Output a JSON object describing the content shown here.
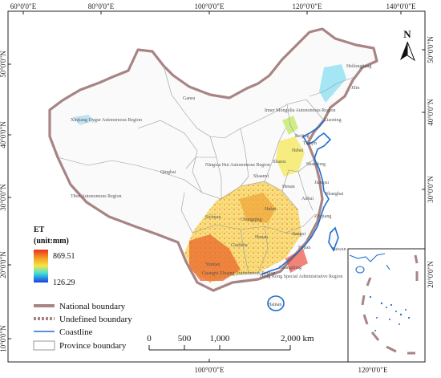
{
  "map": {
    "top_ticks": [
      "60°0'0\"E",
      "80°0'0\"E",
      "100°0'0\"E",
      "120°0'0\"E",
      "140°0'0\"E"
    ],
    "bottom_ticks": [
      "100°0'0\"E",
      "120°0'0\"E"
    ],
    "left_ticks": [
      "50°0'0\"N",
      "40°0'0\"N",
      "30°0'0\"N",
      "20°0'0\"N",
      "10°0'0\"N"
    ],
    "right_ticks": [
      "50°0'0\"N",
      "40°0'0\"N",
      "30°0'0\"N",
      "20°0'0\"N"
    ],
    "north_label": "N",
    "colors": {
      "national_boundary": "#a88484",
      "coastline": "#1f6fd0",
      "province_boundary": "#9a9a9a",
      "et_high": "#e8321e",
      "et_mid": "#f4e64a",
      "et_low": "#1b3ee6"
    },
    "provinces": [
      {
        "key": "xinjiang",
        "label": "Xinjiang Uygur Autonomous Region"
      },
      {
        "key": "tibet",
        "label": "Tibet Autonomous Region"
      },
      {
        "key": "qinghai",
        "label": "Qinghai"
      },
      {
        "key": "gansu",
        "label": "Gansu"
      },
      {
        "key": "inner_mongolia",
        "label": "Inner Mongolia Autonomous Region"
      },
      {
        "key": "heilongjiang",
        "label": "Heilongjiang"
      },
      {
        "key": "jilin",
        "label": "Jilin"
      },
      {
        "key": "liaoning",
        "label": "Liaoning"
      },
      {
        "key": "beijing",
        "label": "Beijing"
      },
      {
        "key": "tianjin",
        "label": "Tianjin"
      },
      {
        "key": "hebei",
        "label": "Hebei"
      },
      {
        "key": "shanxi",
        "label": "Shanxi"
      },
      {
        "key": "shandong",
        "label": "Shandong"
      },
      {
        "key": "ningxia",
        "label": "Ningxia Hui Autonomous Region"
      },
      {
        "key": "shaanxi",
        "label": "Shaanxi"
      },
      {
        "key": "henan",
        "label": "Henan"
      },
      {
        "key": "jiangsu",
        "label": "Jiangsu"
      },
      {
        "key": "shanghai",
        "label": "Shanghai"
      },
      {
        "key": "anhui",
        "label": "Anhui"
      },
      {
        "key": "hubei",
        "label": "Hubei"
      },
      {
        "key": "zhejiang",
        "label": "Zhejiang"
      },
      {
        "key": "sichuan",
        "label": "Sichuan"
      },
      {
        "key": "chongqing",
        "label": "Chongqing"
      },
      {
        "key": "jiangxi",
        "label": "Jiangxi"
      },
      {
        "key": "hunan",
        "label": "Hunan"
      },
      {
        "key": "guizhou",
        "label": "Guizhou"
      },
      {
        "key": "fujian",
        "label": "Fujian"
      },
      {
        "key": "taiwan",
        "label": "Taiwan"
      },
      {
        "key": "yunnan",
        "label": "Yunnan"
      },
      {
        "key": "guangxi",
        "label": "Guangxi Zhuang Autonomous Region"
      },
      {
        "key": "guangdong",
        "label": "Guangdong"
      },
      {
        "key": "hongkong_macao",
        "label": "Hong Kong Special Administrative Region"
      },
      {
        "key": "hainan",
        "label": "Hainan"
      }
    ]
  },
  "legend": {
    "title_line1": "ET",
    "title_line2": "(unit:mm)",
    "max_value": "869.51",
    "min_value": "126.29",
    "national_boundary": "National boundary",
    "undefined_boundary": "Undefined boundary",
    "coastline": "Coastline",
    "province_boundary": "Province boundary"
  },
  "scale_bar": {
    "labels": [
      "0",
      "500",
      "1,000",
      "2,000 km"
    ]
  }
}
